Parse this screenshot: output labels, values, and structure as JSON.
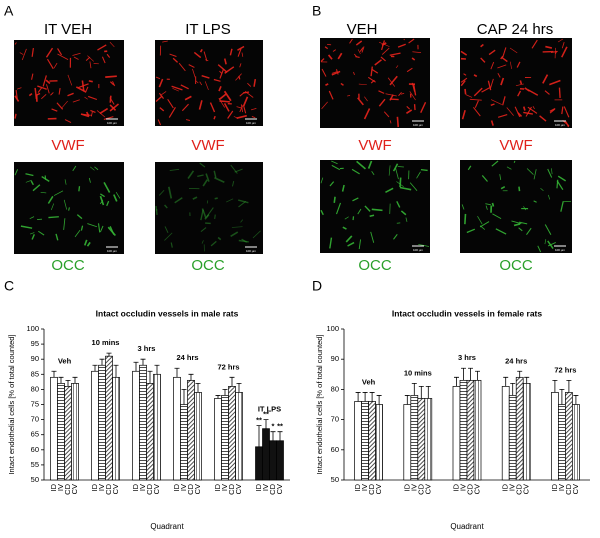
{
  "panels": {
    "A": {
      "label": "A",
      "columns": [
        "IT VEH",
        "IT LPS"
      ],
      "row_labels": [
        "VWF",
        "OCC"
      ]
    },
    "B": {
      "label": "B",
      "columns": [
        "VEH",
        "CAP 24 hrs"
      ],
      "row_labels": [
        "VWF",
        "OCC"
      ]
    },
    "C": {
      "label": "C"
    },
    "D": {
      "label": "D"
    },
    "scale_bar": "100 µm"
  },
  "chart_data": [
    {
      "type": "bar",
      "title": "Intact occludin vessels in male rats",
      "ylabel": "Intact endothelial cells [% of total counted]",
      "xlabel": "Quadrant",
      "categories": [
        "Veh",
        "10 mins",
        "3 hrs",
        "24 hrs",
        "72 hrs",
        "IT LPS"
      ],
      "category_colors": [
        "#ffffff",
        "#ffffff",
        "#ffffff",
        "#ffffff",
        "#ffffff",
        "#111111"
      ],
      "series": [
        {
          "name": "ID",
          "color": "#ffffff",
          "pattern": "none",
          "values": [
            84,
            86,
            86,
            84,
            77,
            61
          ],
          "errors": [
            2,
            2,
            3,
            3,
            1,
            7
          ]
        },
        {
          "name": "IV",
          "color": "#ffffff",
          "pattern": "horizontal",
          "values": [
            82,
            88,
            88,
            75,
            78,
            67
          ],
          "errors": [
            2,
            2,
            2,
            5,
            2,
            3
          ]
        },
        {
          "name": "CD",
          "color": "#ffffff",
          "pattern": "diagonal",
          "values": [
            81,
            91,
            82,
            83,
            81,
            63
          ],
          "errors": [
            2,
            1,
            4,
            2,
            3,
            3
          ]
        },
        {
          "name": "CV",
          "color": "#ffffff",
          "pattern": "vertical",
          "values": [
            82,
            84,
            85,
            79,
            79,
            63
          ],
          "errors": [
            2,
            4,
            3,
            3,
            3,
            3
          ]
        }
      ],
      "annotations": [
        {
          "text": "**",
          "category": 5,
          "series": 0
        },
        {
          "text": "**",
          "category": 5,
          "series": 1
        },
        {
          "text": "*",
          "category": 5,
          "series": 2
        },
        {
          "text": "**",
          "category": 5,
          "series": 3
        }
      ],
      "ylim": [
        50,
        100
      ],
      "yticks": [
        50,
        55,
        60,
        65,
        70,
        75,
        80,
        85,
        90,
        95,
        100
      ]
    },
    {
      "type": "bar",
      "title": "Intact occludin vessels in female rats",
      "ylabel": "Intact endothelial cells [% of total counted]",
      "xlabel": "Quadrant",
      "categories": [
        "Veh",
        "10 mins",
        "3 hrs",
        "24 hrs",
        "72 hrs"
      ],
      "series": [
        {
          "name": "ID",
          "color": "#ffffff",
          "pattern": "none",
          "values": [
            76,
            75,
            81,
            81,
            79
          ],
          "errors": [
            3,
            3,
            3,
            3,
            4
          ]
        },
        {
          "name": "IV",
          "color": "#ffffff",
          "pattern": "horizontal",
          "values": [
            76,
            78,
            83,
            78,
            75
          ],
          "errors": [
            3,
            4,
            4,
            4,
            5
          ]
        },
        {
          "name": "CD",
          "color": "#ffffff",
          "pattern": "diagonal",
          "values": [
            76,
            77,
            83,
            84,
            79
          ],
          "errors": [
            3,
            4,
            4,
            2,
            4
          ]
        },
        {
          "name": "CV",
          "color": "#ffffff",
          "pattern": "vertical",
          "values": [
            75,
            77,
            83,
            82,
            75
          ],
          "errors": [
            3,
            4,
            3,
            2,
            3
          ]
        }
      ],
      "ylim": [
        50,
        100
      ],
      "yticks": [
        50,
        60,
        70,
        80,
        90,
        100
      ]
    }
  ]
}
